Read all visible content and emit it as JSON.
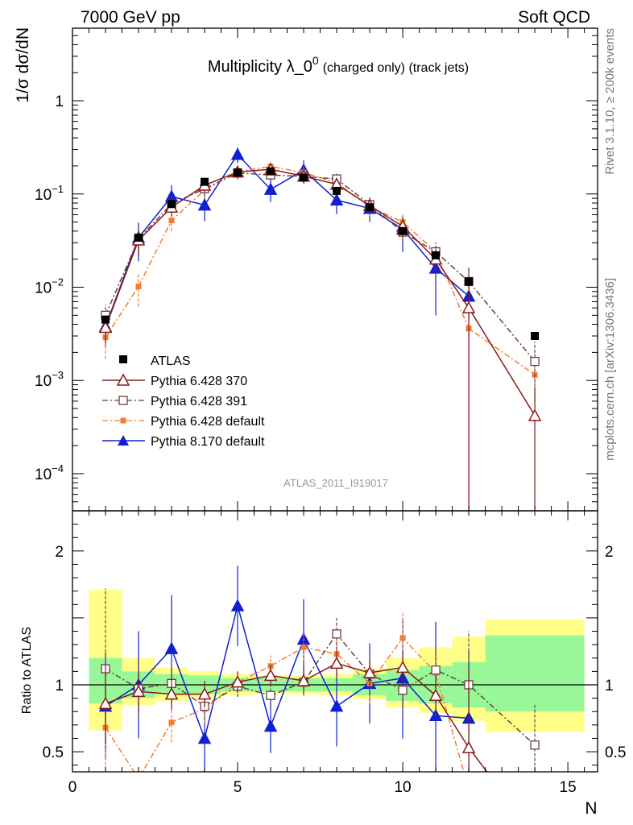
{
  "header": {
    "left": "7000 GeV pp",
    "right": "Soft QCD"
  },
  "side_labels": {
    "top": "Rivet 3.1.10, ≥ 200k events",
    "bottom": "mcplots.cern.ch [arXiv:1306.3436]"
  },
  "colors": {
    "atlas": "#000000",
    "p6_370": "#8b1a1a",
    "p6_391": "#6b4040",
    "p6_default": "#f47d30",
    "p8_default": "#1020d0",
    "band_inner": "#98f898",
    "band_outer": "#ffff88"
  },
  "chart_data": [
    {
      "type": "scatter",
      "panel": "main",
      "title_main": "Multiplicity λ_0",
      "title_sup": "0",
      "title_suffix": "(charged only) (track jets)",
      "ylabel": "1/σ dσ/dN",
      "xlabel": "",
      "yscale": "log",
      "xlim": [
        0,
        15.9
      ],
      "ylim": [
        4e-05,
        6
      ],
      "y_ticks": [
        {
          "v": 1,
          "base": "1",
          "exp": ""
        },
        {
          "v": 0.1,
          "base": "10",
          "exp": "−1"
        },
        {
          "v": 0.01,
          "base": "10",
          "exp": "−2"
        },
        {
          "v": 0.001,
          "base": "10",
          "exp": "−3"
        },
        {
          "v": 0.0001,
          "base": "10",
          "exp": "−4"
        }
      ],
      "watermark": "ATLAS_2011_I919017",
      "legend_position": "bottom-left",
      "series": [
        {
          "name": "ATLAS",
          "key": "atlas",
          "marker": "square-filled",
          "line": "none",
          "x": [
            1,
            2,
            3,
            4,
            5,
            6,
            7,
            8,
            9,
            10,
            11,
            12,
            14
          ],
          "y": [
            0.0045,
            0.034,
            0.078,
            0.135,
            0.17,
            0.175,
            0.15,
            0.108,
            0.072,
            0.04,
            0.022,
            0.0115,
            0.003
          ]
        },
        {
          "name": "Pythia 6.428 370",
          "key": "p6_370",
          "marker": "triangle-open",
          "line": "solid",
          "x": [
            1,
            2,
            3,
            4,
            5,
            6,
            7,
            8,
            9,
            10,
            11,
            12,
            14
          ],
          "y": [
            0.0037,
            0.032,
            0.072,
            0.124,
            0.172,
            0.184,
            0.155,
            0.127,
            0.075,
            0.045,
            0.02,
            0.006,
            0.00042
          ],
          "err": [
            0.0012,
            0.01,
            0.015,
            0.02,
            0.025,
            0.025,
            0.025,
            0.02,
            0.015,
            0.01,
            0.006,
            0.006,
            0.00042
          ]
        },
        {
          "name": "Pythia 6.428 391",
          "key": "p6_391",
          "marker": "square-open",
          "line": "dashdot",
          "x": [
            1,
            2,
            3,
            4,
            5,
            6,
            7,
            8,
            9,
            10,
            11,
            12,
            14
          ],
          "y": [
            0.005,
            0.033,
            0.078,
            0.114,
            0.168,
            0.16,
            0.154,
            0.145,
            0.077,
            0.039,
            0.024,
            0.0115,
            0.0016
          ],
          "err": [
            0.0015,
            0.01,
            0.015,
            0.02,
            0.025,
            0.025,
            0.025,
            0.02,
            0.015,
            0.01,
            0.006,
            0.005,
            0.001
          ]
        },
        {
          "name": "Pythia 6.428 default",
          "key": "p6_default",
          "marker": "square-small-filled",
          "line": "dashdot",
          "x": [
            1,
            2,
            3,
            4,
            5,
            6,
            7,
            8,
            9,
            10,
            11,
            12,
            14
          ],
          "y": [
            0.0029,
            0.0102,
            0.052,
            0.11,
            0.174,
            0.197,
            0.17,
            0.132,
            0.073,
            0.05,
            0.024,
            0.0036,
            0.00115
          ],
          "err": [
            0.0012,
            0.004,
            0.012,
            0.02,
            0.025,
            0.025,
            0.025,
            0.02,
            0.015,
            0.01,
            0.006,
            0.0036,
            0.0008
          ]
        },
        {
          "name": "Pythia 8.170 default",
          "key": "p8_default",
          "marker": "triangle-filled",
          "line": "solid",
          "x": [
            1,
            2,
            3,
            4,
            5,
            6,
            7,
            8,
            9,
            10,
            11,
            12
          ],
          "y": [
            0.0038,
            0.034,
            0.094,
            0.076,
            0.265,
            0.112,
            0.18,
            0.086,
            0.07,
            0.042,
            0.016,
            0.008
          ],
          "err": [
            0.0015,
            0.015,
            0.03,
            0.025,
            0.05,
            0.03,
            0.05,
            0.025,
            0.02,
            0.018,
            0.011,
            0.008
          ]
        }
      ]
    },
    {
      "type": "scatter",
      "panel": "ratio",
      "ylabel": "Ratio to ATLAS",
      "xlabel": "N",
      "xlim": [
        0,
        15.9
      ],
      "ylim": [
        0.35,
        2.3
      ],
      "x_ticks": [
        0,
        5,
        10,
        15
      ],
      "y_ticks": [
        0.5,
        1,
        2
      ],
      "bands": {
        "edges": [
          0.5,
          1.5,
          2.5,
          3.5,
          4.5,
          5.5,
          6.5,
          7.5,
          8.5,
          9.5,
          10.5,
          11.5,
          12.5,
          15.5
        ],
        "inner_lo": [
          0.86,
          0.9,
          0.93,
          0.93,
          0.95,
          0.95,
          0.95,
          0.95,
          0.92,
          0.88,
          0.86,
          0.83,
          0.8
        ],
        "inner_hi": [
          1.2,
          1.1,
          1.08,
          1.07,
          1.05,
          1.05,
          1.05,
          1.05,
          1.08,
          1.11,
          1.14,
          1.17,
          1.37
        ],
        "outer_lo": [
          0.66,
          0.85,
          0.88,
          0.9,
          0.92,
          0.93,
          0.93,
          0.92,
          0.89,
          0.83,
          0.79,
          0.73,
          0.65,
          0.48
        ],
        "outer_hi": [
          1.71,
          1.2,
          1.13,
          1.1,
          1.08,
          1.07,
          1.07,
          1.08,
          1.12,
          1.2,
          1.28,
          1.36,
          1.49,
          1.62
        ]
      },
      "series": [
        {
          "key": "p6_370",
          "x": [
            1,
            2,
            3,
            4,
            5,
            6,
            7,
            8,
            9,
            10,
            11,
            12,
            12.55
          ],
          "y": [
            0.86,
            0.95,
            0.93,
            0.93,
            1.02,
            1.07,
            1.03,
            1.16,
            1.09,
            1.13,
            0.92,
            0.53,
            0.35
          ],
          "err": [
            0.3,
            0.15,
            0.12,
            0.1,
            0.08,
            0.08,
            0.1,
            0.1,
            0.1,
            0.12,
            0.15,
            0.6,
            0
          ],
          "markers": [
            true,
            true,
            true,
            true,
            true,
            true,
            true,
            true,
            true,
            true,
            true,
            true,
            false
          ]
        },
        {
          "key": "p6_391",
          "x": [
            1,
            2,
            3,
            4,
            5,
            6,
            7,
            8,
            9,
            10,
            11,
            12,
            14
          ],
          "y": [
            1.12,
            0.97,
            1.01,
            0.84,
            0.99,
            0.92,
            1.02,
            1.38,
            1.08,
            0.96,
            1.11,
            1.0,
            0.55
          ],
          "err": [
            0.6,
            0.2,
            0.15,
            0.1,
            0.08,
            0.08,
            0.1,
            0.12,
            0.15,
            0.2,
            0.25,
            0.4,
            0.3
          ]
        },
        {
          "key": "p6_default",
          "x": [
            1,
            2,
            3,
            4,
            5,
            6,
            7,
            8,
            9,
            10,
            11,
            11.85
          ],
          "y": [
            0.68,
            0.3,
            0.72,
            0.82,
            1.02,
            1.14,
            1.28,
            1.23,
            1.01,
            1.35,
            1.09,
            0.35
          ],
          "err": [
            0.35,
            0.1,
            0.15,
            0.1,
            0.08,
            0.08,
            0.1,
            0.1,
            0.15,
            0.2,
            0.15,
            0
          ],
          "markers": [
            true,
            false,
            true,
            true,
            true,
            true,
            true,
            true,
            true,
            true,
            true,
            false
          ]
        },
        {
          "key": "p8_default",
          "x": [
            1,
            2,
            3,
            4,
            5,
            6,
            7,
            8,
            9,
            10,
            11,
            12
          ],
          "y": [
            0.84,
            1.0,
            1.27,
            0.6,
            1.59,
            0.69,
            1.34,
            0.84,
            1.01,
            1.05,
            0.77,
            0.75
          ],
          "err": [
            0.4,
            0.4,
            0.4,
            0.3,
            0.3,
            0.2,
            0.3,
            0.3,
            0.3,
            0.45,
            0.7,
            0.5
          ]
        }
      ]
    }
  ]
}
